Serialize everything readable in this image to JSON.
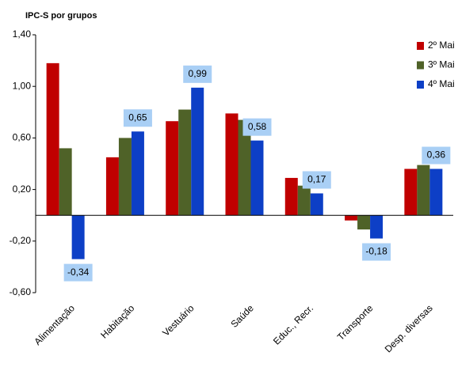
{
  "chart_data": {
    "type": "bar",
    "title": "IPC-S por grupos",
    "categories": [
      "Alimentação",
      "Habitação",
      "Vestuário",
      "Saúde",
      "Educ., Recr.",
      "Transporte",
      "Desp. diversas"
    ],
    "series": [
      {
        "name": "2º Mai",
        "color": "#c00000",
        "values": [
          1.18,
          0.45,
          0.73,
          0.79,
          0.29,
          -0.04,
          0.36
        ]
      },
      {
        "name": "3º Mai",
        "color": "#4f6228",
        "values": [
          0.52,
          0.6,
          0.82,
          0.74,
          0.23,
          -0.11,
          0.39
        ]
      },
      {
        "name": "4º Mai",
        "color": "#0d3fc6",
        "values": [
          -0.34,
          0.65,
          0.99,
          0.58,
          0.17,
          -0.18,
          0.36
        ],
        "value_labels": [
          "-0,34",
          "0,65",
          "0,99",
          "0,58",
          "0,17",
          "-0,18",
          "0,36"
        ]
      }
    ],
    "ylim": [
      -0.6,
      1.4
    ],
    "yticks": [
      {
        "value": -0.6,
        "label": "-0,60"
      },
      {
        "value": -0.2,
        "label": "-0,20"
      },
      {
        "value": 0.2,
        "label": "0,20"
      },
      {
        "value": 0.6,
        "label": "0,60"
      },
      {
        "value": 1.0,
        "label": "1,00"
      },
      {
        "value": 1.4,
        "label": "1,40"
      }
    ],
    "grid": false,
    "legend": "top-right"
  }
}
